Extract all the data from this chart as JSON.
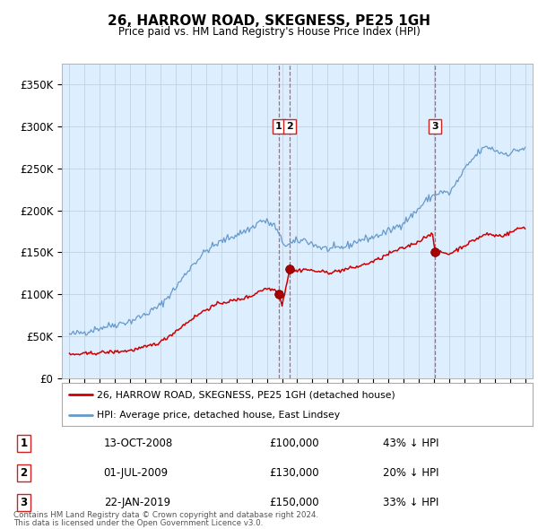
{
  "title": "26, HARROW ROAD, SKEGNESS, PE25 1GH",
  "subtitle": "Price paid vs. HM Land Registry's House Price Index (HPI)",
  "legend_label_red": "26, HARROW ROAD, SKEGNESS, PE25 1GH (detached house)",
  "legend_label_blue": "HPI: Average price, detached house, East Lindsey",
  "footnote1": "Contains HM Land Registry data © Crown copyright and database right 2024.",
  "footnote2": "This data is licensed under the Open Government Licence v3.0.",
  "transactions": [
    {
      "num": 1,
      "date": "13-OCT-2008",
      "price": 100000,
      "hpi_diff": "43% ↓ HPI"
    },
    {
      "num": 2,
      "date": "01-JUL-2009",
      "price": 130000,
      "hpi_diff": "20% ↓ HPI"
    },
    {
      "num": 3,
      "date": "22-JAN-2019",
      "price": 150000,
      "hpi_diff": "33% ↓ HPI"
    }
  ],
  "point1_x": 2008.79,
  "point1_y": 100000,
  "point2_x": 2009.5,
  "point2_y": 130000,
  "point3_x": 2019.06,
  "point3_y": 150000,
  "red_color": "#cc0000",
  "blue_color": "#6699cc",
  "bg_color": "#ddeeff",
  "plot_bg": "#ffffff",
  "grid_color": "#bbccdd",
  "ylim": [
    0,
    375000
  ],
  "xlim": [
    1994.5,
    2025.5
  ],
  "hpi_key_points": [
    [
      1995.0,
      52000
    ],
    [
      1996.0,
      55000
    ],
    [
      1997.0,
      60000
    ],
    [
      1998.0,
      64000
    ],
    [
      1999.0,
      68000
    ],
    [
      2000.0,
      76000
    ],
    [
      2001.0,
      87000
    ],
    [
      2002.0,
      108000
    ],
    [
      2003.0,
      133000
    ],
    [
      2004.0,
      152000
    ],
    [
      2005.0,
      163000
    ],
    [
      2006.0,
      171000
    ],
    [
      2007.0,
      179000
    ],
    [
      2007.6,
      188000
    ],
    [
      2008.0,
      186000
    ],
    [
      2008.5,
      182000
    ],
    [
      2009.0,
      163000
    ],
    [
      2009.3,
      158000
    ],
    [
      2009.8,
      162000
    ],
    [
      2010.0,
      163000
    ],
    [
      2010.5,
      165000
    ],
    [
      2011.0,
      160000
    ],
    [
      2011.5,
      156000
    ],
    [
      2012.0,
      154000
    ],
    [
      2012.5,
      154000
    ],
    [
      2013.0,
      156000
    ],
    [
      2013.5,
      159000
    ],
    [
      2014.0,
      164000
    ],
    [
      2015.0,
      168000
    ],
    [
      2016.0,
      175000
    ],
    [
      2016.5,
      180000
    ],
    [
      2017.0,
      186000
    ],
    [
      2017.5,
      193000
    ],
    [
      2018.0,
      202000
    ],
    [
      2018.5,
      212000
    ],
    [
      2019.0,
      218000
    ],
    [
      2019.5,
      222000
    ],
    [
      2020.0,
      220000
    ],
    [
      2020.5,
      233000
    ],
    [
      2021.0,
      248000
    ],
    [
      2021.5,
      260000
    ],
    [
      2022.0,
      270000
    ],
    [
      2022.5,
      276000
    ],
    [
      2023.0,
      272000
    ],
    [
      2023.5,
      268000
    ],
    [
      2024.0,
      268000
    ],
    [
      2024.5,
      272000
    ],
    [
      2025.0,
      274000
    ]
  ],
  "red_key_points": [
    [
      1995.0,
      28000
    ],
    [
      1996.0,
      29000
    ],
    [
      1997.0,
      30500
    ],
    [
      1998.0,
      31500
    ],
    [
      1999.0,
      33000
    ],
    [
      2000.0,
      37000
    ],
    [
      2001.0,
      43000
    ],
    [
      2002.0,
      56000
    ],
    [
      2003.0,
      70000
    ],
    [
      2004.0,
      82000
    ],
    [
      2005.0,
      90000
    ],
    [
      2006.0,
      93000
    ],
    [
      2007.0,
      98000
    ],
    [
      2007.5,
      104000
    ],
    [
      2008.0,
      107000
    ],
    [
      2008.6,
      105000
    ],
    [
      2008.79,
      100000
    ],
    [
      2009.0,
      87000
    ],
    [
      2009.5,
      130000
    ],
    [
      2009.8,
      128000
    ],
    [
      2010.0,
      128000
    ],
    [
      2010.5,
      130000
    ],
    [
      2011.0,
      128000
    ],
    [
      2011.5,
      127000
    ],
    [
      2012.0,
      126000
    ],
    [
      2012.5,
      127000
    ],
    [
      2013.0,
      129000
    ],
    [
      2013.5,
      131000
    ],
    [
      2014.0,
      133000
    ],
    [
      2014.5,
      136000
    ],
    [
      2015.0,
      139000
    ],
    [
      2015.5,
      143000
    ],
    [
      2016.0,
      148000
    ],
    [
      2016.5,
      152000
    ],
    [
      2017.0,
      155000
    ],
    [
      2017.5,
      159000
    ],
    [
      2018.0,
      163000
    ],
    [
      2018.5,
      169000
    ],
    [
      2018.9,
      174000
    ],
    [
      2019.06,
      150000
    ],
    [
      2019.2,
      147000
    ],
    [
      2019.5,
      150000
    ],
    [
      2020.0,
      148000
    ],
    [
      2020.5,
      153000
    ],
    [
      2021.0,
      158000
    ],
    [
      2021.5,
      163000
    ],
    [
      2022.0,
      168000
    ],
    [
      2022.5,
      172000
    ],
    [
      2023.0,
      170000
    ],
    [
      2023.5,
      170000
    ],
    [
      2024.0,
      173000
    ],
    [
      2024.5,
      178000
    ],
    [
      2025.0,
      180000
    ]
  ]
}
